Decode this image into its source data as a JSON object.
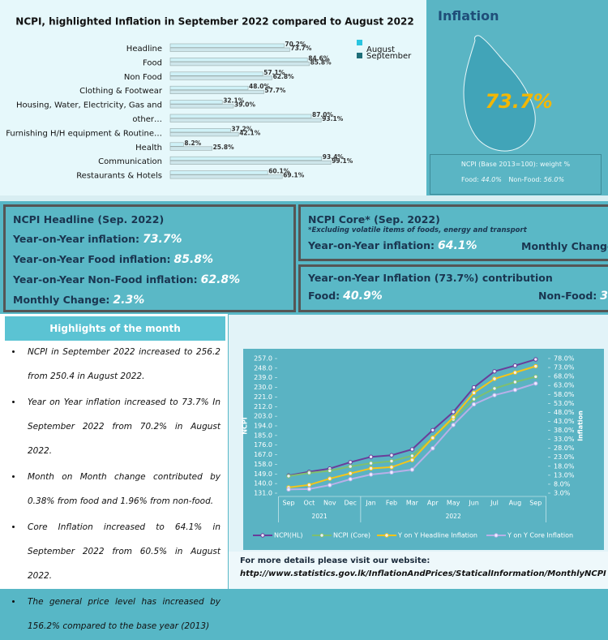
{
  "chart_data": [
    {
      "type": "bar",
      "orientation": "horizontal",
      "title": "NCPI, highlighted Inflation in September 2022 compared to August 2022",
      "categories": [
        "Headline",
        "Food",
        "Non Food",
        "Clothing & Footwear",
        "Housing, Water, Electricity, Gas and",
        "other…",
        "Furnishing H/H equipment & Routine…",
        "Health",
        "Communication",
        "Restaurants & Hotels"
      ],
      "series": [
        {
          "name": "August",
          "color": "#29c5e0",
          "values": [
            70.2,
            84.6,
            57.1,
            48.0,
            32.1,
            87.0,
            37.2,
            8.2,
            93.4,
            60.1
          ],
          "value_labels": [
            "70.2%",
            "84.6%",
            "57.1%",
            "48.0%",
            "32.1%",
            "87.0%",
            "37.2%",
            "8.2%",
            "93.4%",
            "60.1%"
          ]
        },
        {
          "name": "September",
          "color": "#1f6e78",
          "values": [
            73.7,
            85.8,
            62.8,
            57.7,
            39.0,
            93.1,
            42.1,
            25.8,
            99.1,
            69.1
          ],
          "value_labels": [
            "73.7%",
            "85.8%",
            "62.8%",
            "57.7%",
            "39.0%",
            "93.1%",
            "42.1%",
            "25.8%",
            "99.1%",
            "69.1%"
          ]
        }
      ]
    },
    {
      "type": "line",
      "categories": [
        "Sep",
        "Oct",
        "Nov",
        "Dec",
        "Jan",
        "Feb",
        "Mar",
        "Apr",
        "May",
        "Jun",
        "Jul",
        "Aug",
        "Sep"
      ],
      "groups": [
        "2021",
        "2022"
      ],
      "y_label": "NCPI",
      "y2_label": "Inflation",
      "ylim": [
        131,
        257
      ],
      "yticks": [
        {
          "value": 131,
          "label": "131.0"
        },
        {
          "value": 140,
          "label": "140.0"
        },
        {
          "value": 149,
          "label": "149.0"
        },
        {
          "value": 158,
          "label": "158.0"
        },
        {
          "value": 167,
          "label": "167.0"
        },
        {
          "value": 176,
          "label": "176.0"
        },
        {
          "value": 185,
          "label": "185.0"
        },
        {
          "value": 194,
          "label": "194.0"
        },
        {
          "value": 203,
          "label": "203.0"
        },
        {
          "value": 212,
          "label": "212.0"
        },
        {
          "value": 221,
          "label": "221.0"
        },
        {
          "value": 230,
          "label": "230.0"
        },
        {
          "value": 239,
          "label": "239.0"
        },
        {
          "value": 248,
          "label": "248.0"
        },
        {
          "value": 257,
          "label": "257.0"
        }
      ],
      "y2lim": [
        3,
        78
      ],
      "y2ticks": [
        {
          "value": 3,
          "label": "3.0%"
        },
        {
          "value": 8,
          "label": "8.0%"
        },
        {
          "value": 13,
          "label": "13.0%"
        },
        {
          "value": 18,
          "label": "18.0%"
        },
        {
          "value": 23,
          "label": "23.0%"
        },
        {
          "value": 28,
          "label": "28.0%"
        },
        {
          "value": 33,
          "label": "33.0%"
        },
        {
          "value": 38,
          "label": "38.0%"
        },
        {
          "value": 43,
          "label": "43.0%"
        },
        {
          "value": 48,
          "label": "48.0%"
        },
        {
          "value": 53,
          "label": "53.0%"
        },
        {
          "value": 58,
          "label": "58.0%"
        },
        {
          "value": 63,
          "label": "63.0%"
        },
        {
          "value": 68,
          "label": "68.0%"
        },
        {
          "value": 73,
          "label": "73.0%"
        },
        {
          "value": 78,
          "label": "78.0%"
        }
      ],
      "series": [
        {
          "name": "NCPI(HL)",
          "color": "#6a3d9a",
          "values": [
            147.5,
            151,
            154,
            160,
            165,
            166.5,
            172,
            190,
            207,
            230,
            245,
            250.4,
            256.2
          ]
        },
        {
          "name": "NCPI (Core)",
          "color": "#7fbf6f",
          "values": [
            147,
            150,
            152,
            156,
            159,
            161,
            166,
            183,
            200,
            219,
            229,
            235,
            240
          ]
        },
        {
          "name": "Y on Y Headline Inflation",
          "color": "#f5c518",
          "axis": "y2",
          "values": [
            6.2,
            7.6,
            11.1,
            14.0,
            16.8,
            17.5,
            21.5,
            33.8,
            45.3,
            58.9,
            66.7,
            70.2,
            73.7
          ]
        },
        {
          "name": "Y on Y Core Inflation",
          "color": "#b8b0e8",
          "axis": "y2",
          "values": [
            5.1,
            5.3,
            7.5,
            10.8,
            13.4,
            14.6,
            16.1,
            28.0,
            41.0,
            52.5,
            57.6,
            60.5,
            64.1
          ]
        }
      ]
    }
  ],
  "inflation_panel": {
    "title": "Inflation",
    "value": "73.7%",
    "weight_title": "NCPI (Base 2013=100): weight %",
    "weights": [
      {
        "label": "Food:",
        "value": "44.0%"
      },
      {
        "label": "Non-Food:",
        "value": "56.0%"
      }
    ]
  },
  "headline_panel": {
    "title": "NCPI Headline (Sep. 2022)",
    "items": [
      {
        "label": "Year-on-Year inflation:",
        "value": "73.7%"
      },
      {
        "label": "Year-on-Year Food inflation:",
        "value": "85.8%"
      },
      {
        "label": "Year-on-Year Non-Food inflation:",
        "value": "62.8%"
      },
      {
        "label": "Monthly Change:",
        "value": "2.3%"
      }
    ]
  },
  "core_panel": {
    "title": "NCPI Core* (Sep. 2022)",
    "note": "*Excluding volatile items of foods, energy and transport",
    "items": [
      {
        "label": "Year-on-Year inflation:",
        "value": "64.1%"
      }
    ],
    "monthly_label": "Monthly Change"
  },
  "contribution_panel": {
    "title": "Year-on-Year Inflation (73.7%) contribution",
    "items": [
      {
        "label": "Food:",
        "value": "40.9%"
      },
      {
        "label": "Non-Food:",
        "value": "3"
      }
    ]
  },
  "highlights": {
    "title": "Highlights of the month",
    "items": [
      "NCPI in September 2022 increased to 256.2 from 250.4 in August 2022.",
      "Year on Year inflation increased to 73.7% In September 2022 from 70.2% in August 2022.",
      "Month on Month change contributed by 0.38% from food and 1.96% from non-food.",
      "Core Inflation increased to 64.1% in September 2022 from 60.5% in August 2022.",
      "The general price level has increased by 156.2% compared to the base year (2013)"
    ]
  },
  "footer": {
    "text": "For more details please visit our website:",
    "url": "http://www.statistics.gov.lk/InflationAndPrices/StaticalInformation/MonthlyNCPI"
  }
}
